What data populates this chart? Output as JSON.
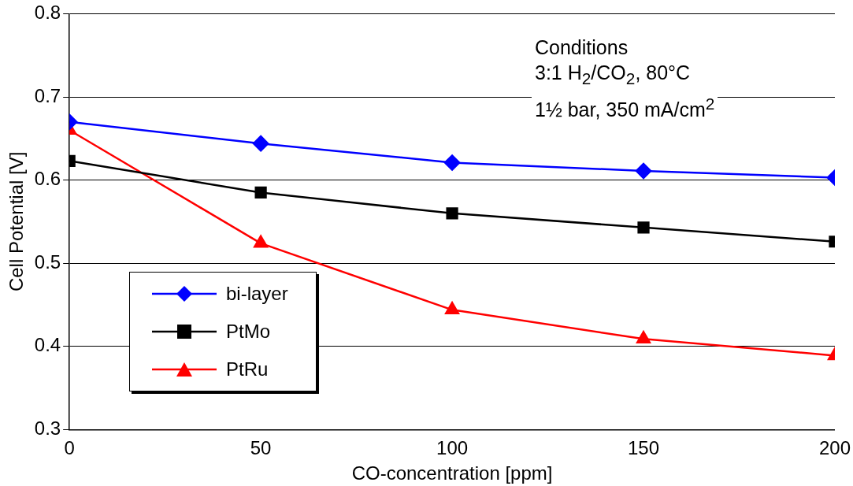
{
  "chart_data": {
    "type": "line",
    "xlabel": "CO-concentration [ppm]",
    "ylabel": "Cell Potential [V]",
    "x": [
      0,
      50,
      100,
      150,
      200
    ],
    "xlim": [
      0,
      200
    ],
    "xticks": [
      0,
      50,
      100,
      150,
      200
    ],
    "ylim": [
      0.3,
      0.8
    ],
    "yticks": [
      0.3,
      0.4,
      0.5,
      0.6,
      0.7,
      0.8
    ],
    "grid": "y",
    "legend": "bottom left",
    "line_style": "solid",
    "annotations": [
      "Conditions",
      "3:1 H$_{2}$/CO$_{2}$, 80°C",
      "1½ bar, 350 mA/cm$^{2}$"
    ],
    "series": [
      {
        "name": "bi-layer",
        "color": "#0000ff",
        "marker": "diamond",
        "values": [
          0.67,
          0.644,
          0.621,
          0.611,
          0.603
        ]
      },
      {
        "name": "PtMo",
        "color": "#000000",
        "marker": "square",
        "values": [
          0.623,
          0.585,
          0.56,
          0.543,
          0.526
        ]
      },
      {
        "name": "PtRu",
        "color": "#ff0000",
        "marker": "triangle",
        "values": [
          0.66,
          0.524,
          0.444,
          0.409,
          0.389
        ]
      }
    ]
  }
}
